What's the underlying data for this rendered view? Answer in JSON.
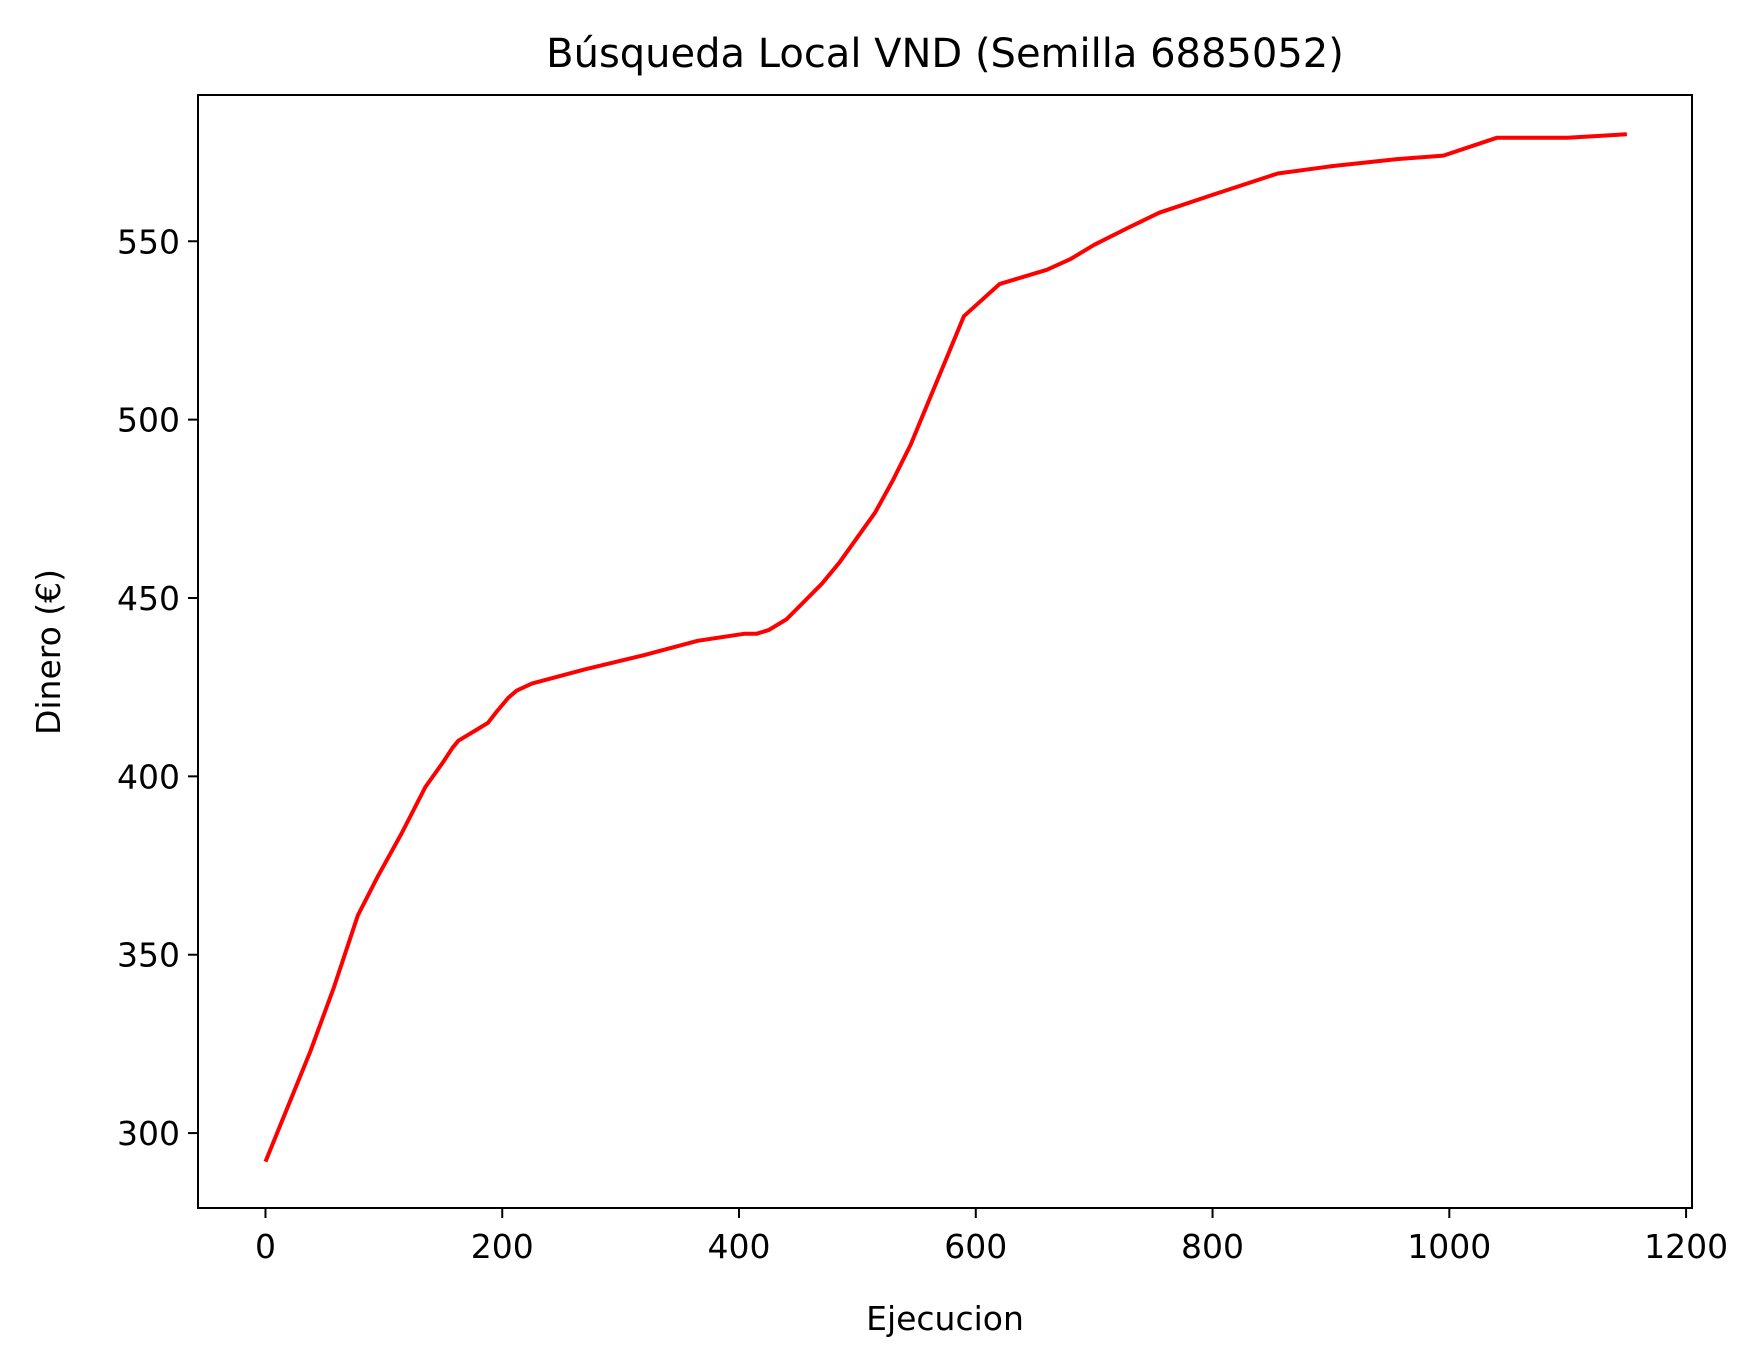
{
  "chart_data": {
    "type": "line",
    "title": "Búsqueda Local VND (Semilla 6885052)",
    "xlabel": "Ejecucion",
    "ylabel": "Dinero (€)",
    "xlim": [
      -57,
      1205
    ],
    "ylim": [
      279,
      591
    ],
    "x_ticks": [
      0,
      200,
      400,
      600,
      800,
      1000,
      1200
    ],
    "y_ticks": [
      300,
      350,
      400,
      450,
      500,
      550
    ],
    "grid": false,
    "series": [
      {
        "color": "#ff0000",
        "x": [
          0,
          38,
          58,
          78,
          95,
          115,
          135,
          150,
          158,
          163,
          178,
          188,
          195,
          205,
          212,
          225,
          270,
          320,
          365,
          405,
          415,
          425,
          440,
          455,
          470,
          485,
          500,
          515,
          530,
          545,
          560,
          575,
          590,
          610,
          620,
          640,
          660,
          680,
          700,
          730,
          755,
          800,
          855,
          900,
          955,
          995,
          1040,
          1100,
          1150
        ],
        "y": [
          292,
          323,
          341,
          361,
          372,
          384,
          397,
          404,
          408,
          410,
          413,
          415,
          418,
          422,
          424,
          426,
          430,
          434,
          438,
          440,
          440,
          441,
          444,
          449,
          454,
          460,
          467,
          474,
          483,
          493,
          505,
          517,
          529,
          535,
          538,
          540,
          542,
          545,
          549,
          554,
          558,
          563,
          569,
          571,
          573,
          574,
          579,
          579,
          580
        ]
      }
    ]
  }
}
